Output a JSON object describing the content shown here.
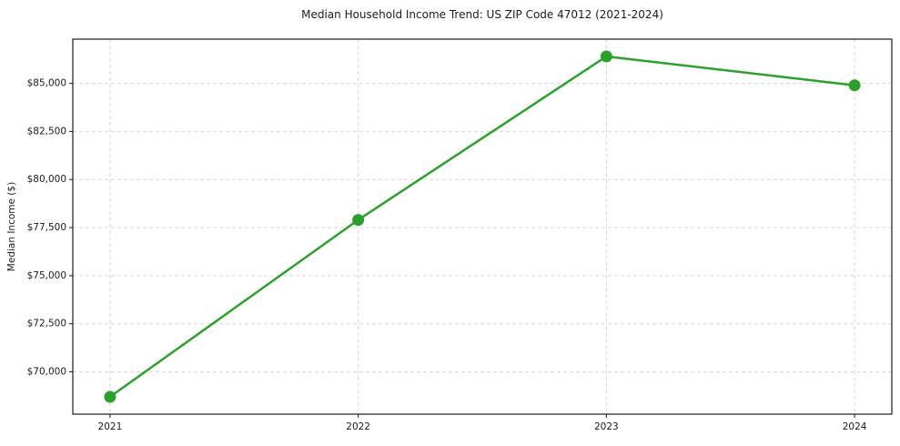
{
  "chart_data": {
    "type": "line",
    "title": "Median Household Income Trend: US ZIP Code 47012 (2021-2024)",
    "xlabel": "",
    "ylabel": "Median Income ($)",
    "x": [
      2021,
      2022,
      2023,
      2024
    ],
    "x_tick_labels": [
      "2021",
      "2022",
      "2023",
      "2024"
    ],
    "series": [
      {
        "name": "Median Household Income",
        "values": [
          68700,
          77900,
          86400,
          84900
        ]
      }
    ],
    "y_ticks": [
      70000,
      72500,
      75000,
      77500,
      80000,
      82500,
      85000
    ],
    "y_tick_labels": [
      "$70,000",
      "$72,500",
      "$75,000",
      "$77,500",
      "$80,000",
      "$82,500",
      "$85,000"
    ],
    "xlim": [
      2020.85,
      2024.15
    ],
    "ylim": [
      67800,
      87300
    ],
    "grid": true,
    "grid_style": "dashed",
    "legend_position": "none",
    "marker": "circle",
    "colors": {
      "line": "#2ca02c",
      "marker": "#2ca02c",
      "grid": "#d8d8d8",
      "spine": "#1a1a1a",
      "text": "#1a1a1a",
      "background": "#ffffff"
    }
  }
}
